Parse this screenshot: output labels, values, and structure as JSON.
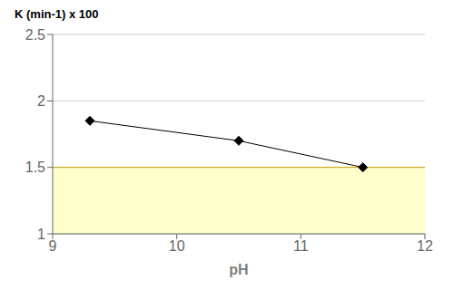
{
  "chart_data": {
    "type": "line",
    "x": [
      9.3,
      10.5,
      11.5
    ],
    "values": [
      1.85,
      1.7,
      1.5
    ],
    "xlabel": "pH",
    "ylabel": "K (min-1) x 100",
    "xlim": [
      9,
      12
    ],
    "ylim": [
      1,
      2.5
    ],
    "xticks": [
      9,
      10,
      11,
      12
    ],
    "yticks": [
      1,
      1.5,
      2,
      2.5
    ],
    "color": "#000000",
    "marker": "diamond",
    "grid": true,
    "band": {
      "y": [
        1,
        1.5
      ],
      "color": "#FFFFCC"
    },
    "hline": {
      "y": 1.5,
      "color": "#C8A000"
    }
  }
}
